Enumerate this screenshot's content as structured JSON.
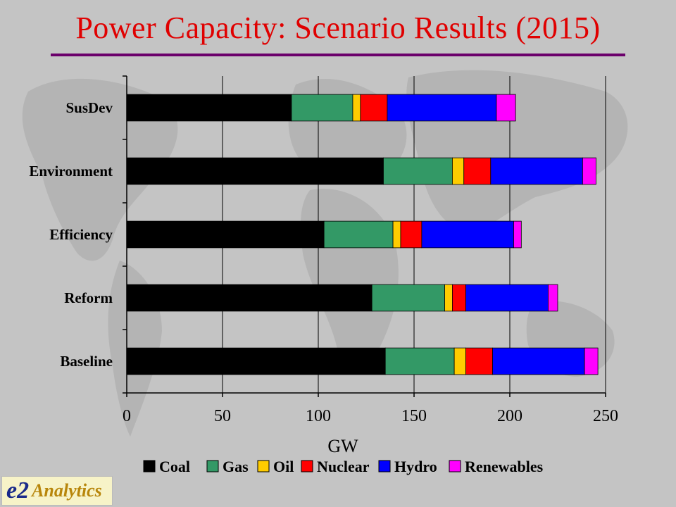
{
  "title": "Power Capacity: Scenario Results (2015)",
  "logo": {
    "mark": "e2",
    "name": "Analytics"
  },
  "colors": {
    "Coal": "#000000",
    "Gas": "#339966",
    "Oil": "#ffcc00",
    "Nuclear": "#ff0000",
    "Hydro": "#0000ff",
    "Renewables": "#ff00ff"
  },
  "chart_data": {
    "type": "bar",
    "orientation": "horizontal",
    "stacked": true,
    "categories": [
      "SusDev",
      "Environment",
      "Efficiency",
      "Reform",
      "Baseline"
    ],
    "series": [
      {
        "name": "Coal",
        "values": [
          86,
          134,
          103,
          128,
          135
        ]
      },
      {
        "name": "Gas",
        "values": [
          32,
          36,
          36,
          38,
          36
        ]
      },
      {
        "name": "Oil",
        "values": [
          4,
          6,
          4,
          4,
          6
        ]
      },
      {
        "name": "Nuclear",
        "values": [
          14,
          14,
          11,
          7,
          14
        ]
      },
      {
        "name": "Hydro",
        "values": [
          57,
          48,
          48,
          43,
          48
        ]
      },
      {
        "name": "Renewables",
        "values": [
          10,
          7,
          4,
          5,
          7
        ]
      }
    ],
    "xlabel": "GW",
    "ylabel": "",
    "xlim": [
      0,
      250
    ],
    "xticks": [
      0,
      50,
      100,
      150,
      200,
      250
    ],
    "grid": "vertical",
    "legend": "bottom"
  }
}
